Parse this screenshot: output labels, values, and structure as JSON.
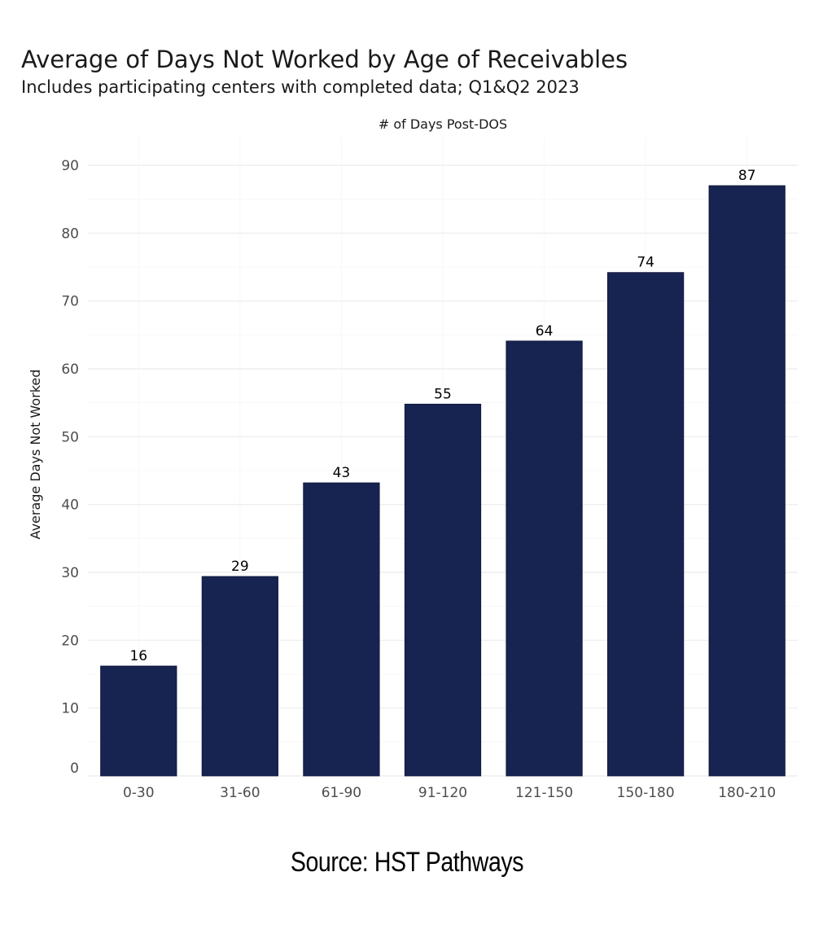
{
  "chart_data": {
    "type": "bar",
    "title": "Average of Days Not Worked by Age of Receivables",
    "subtitle": "Includes participating centers with completed data; Q1&Q2 2023",
    "xlabel": "# of Days Post-DOS",
    "ylabel": "Average Days Not Worked",
    "categories": [
      "0-30",
      "31-60",
      "61-90",
      "91-120",
      "121-150",
      "150-180",
      "180-210"
    ],
    "values": [
      16.2,
      29.4,
      43.2,
      54.8,
      64.1,
      74.2,
      87.0
    ],
    "data_labels": [
      "16",
      "29",
      "43",
      "55",
      "64",
      "74",
      "87"
    ],
    "ylim": [
      0,
      90
    ],
    "yticks": [
      0,
      10,
      20,
      30,
      40,
      50,
      60,
      70,
      80,
      90
    ],
    "grid": true,
    "x_axis_label_position": "top",
    "bar_color": "#172350",
    "grid_color": "#ebebeb",
    "tick_label_color": "#4d4d4d",
    "data_label_color": "#000000"
  },
  "caption": "Source: HST Pathways"
}
